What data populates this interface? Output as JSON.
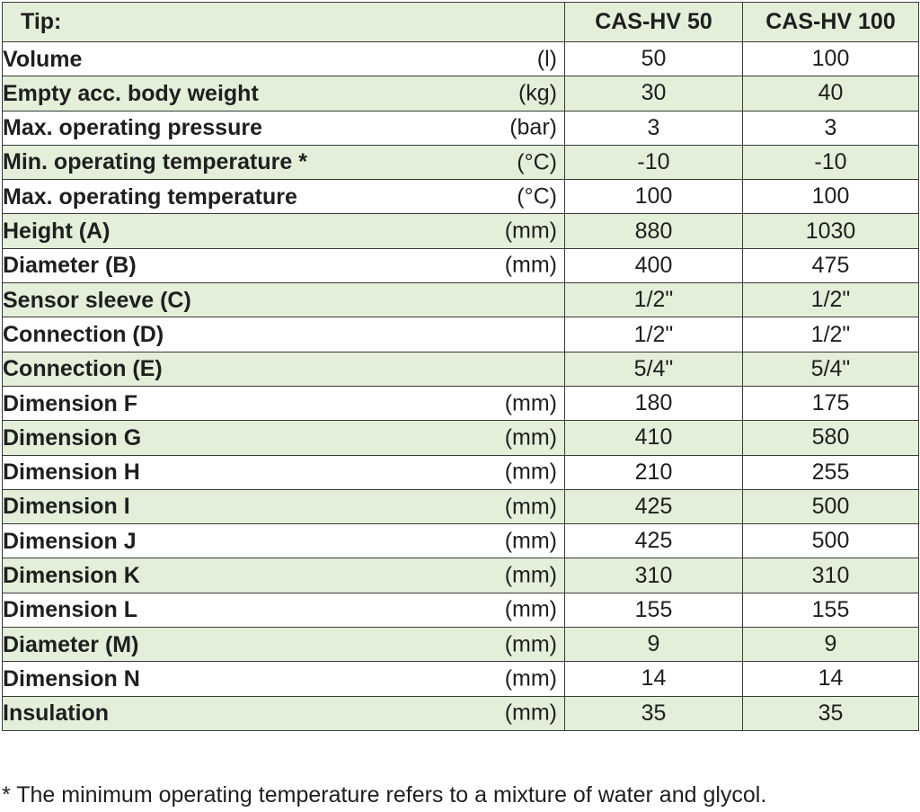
{
  "table": {
    "header": {
      "label": "Tip:",
      "col1": "CAS-HV 50",
      "col2": "CAS-HV 100"
    },
    "rows": [
      {
        "label": "Volume",
        "unit": "(l)",
        "v1": "50",
        "v2": "100"
      },
      {
        "label": "Empty acc. body weight",
        "unit": "(kg)",
        "v1": "30",
        "v2": "40"
      },
      {
        "label": "Max. operating pressure",
        "unit": "(bar)",
        "v1": "3",
        "v2": "3"
      },
      {
        "label": "Min. operating temperature *",
        "unit": "(°C)",
        "v1": "-10",
        "v2": "-10"
      },
      {
        "label": "Max. operating temperature",
        "unit": "(°C)",
        "v1": "100",
        "v2": "100"
      },
      {
        "label": "Height (A)",
        "unit": "(mm)",
        "v1": "880",
        "v2": "1030"
      },
      {
        "label": "Diameter (B)",
        "unit": "(mm)",
        "v1": "400",
        "v2": "475"
      },
      {
        "label": "Sensor sleeve (C)",
        "unit": "",
        "v1": "1/2\"",
        "v2": "1/2\""
      },
      {
        "label": "Connection (D)",
        "unit": "",
        "v1": "1/2\"",
        "v2": "1/2\""
      },
      {
        "label": "Connection (E)",
        "unit": "",
        "v1": "5/4\"",
        "v2": "5/4\""
      },
      {
        "label": "Dimension F",
        "unit": "(mm)",
        "v1": "180",
        "v2": "175"
      },
      {
        "label": "Dimension G",
        "unit": "(mm)",
        "v1": "410",
        "v2": "580"
      },
      {
        "label": "Dimension H",
        "unit": "(mm)",
        "v1": "210",
        "v2": "255"
      },
      {
        "label": "Dimension I",
        "unit": "(mm)",
        "v1": "425",
        "v2": "500"
      },
      {
        "label": "Dimension J",
        "unit": "(mm)",
        "v1": "425",
        "v2": "500"
      },
      {
        "label": "Dimension K",
        "unit": "(mm)",
        "v1": "310",
        "v2": "310"
      },
      {
        "label": "Dimension L",
        "unit": "(mm)",
        "v1": "155",
        "v2": "155"
      },
      {
        "label": "Diameter (M)",
        "unit": "(mm)",
        "v1": "9",
        "v2": "9"
      },
      {
        "label": "Dimension N",
        "unit": "(mm)",
        "v1": "14",
        "v2": "14"
      },
      {
        "label": "Insulation",
        "unit": "(mm)",
        "v1": "35",
        "v2": "35"
      }
    ]
  },
  "footnote": "* The minimum operating temperature refers to a mixture of water and glycol.",
  "colors": {
    "row_green": "#e3efd9",
    "row_white": "#ffffff",
    "border": "#3a3a3a"
  }
}
